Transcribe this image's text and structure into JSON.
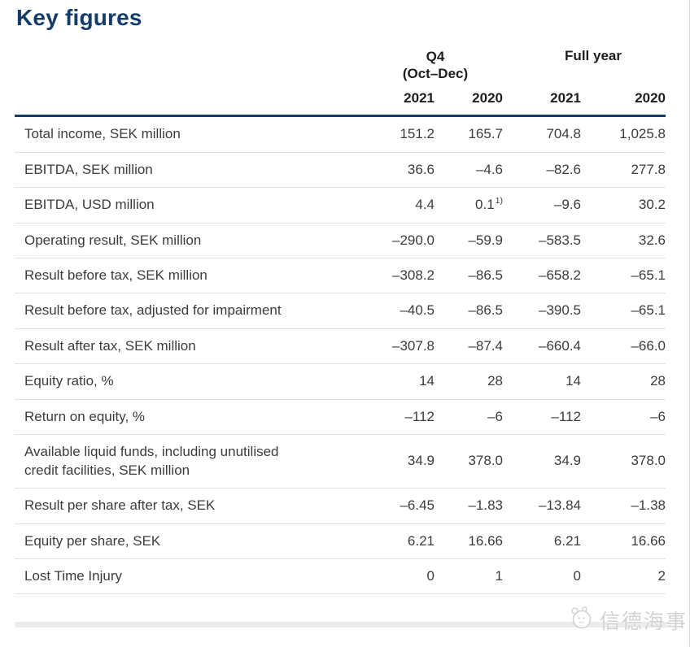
{
  "title": "Key figures",
  "colors": {
    "accent_navy": "#133c6b",
    "body_text": "#3c3c3c",
    "separator": "#e2e2e2",
    "watermark_gray": "#d2d2d2",
    "watermark_bar": "#ebebeb"
  },
  "table": {
    "group_headers": {
      "q4_line1": "Q4",
      "q4_line2": "(Oct–Dec)",
      "full_year": "Full year"
    },
    "years": [
      "2021",
      "2020",
      "2021",
      "2020"
    ],
    "rows": [
      {
        "label": "Total income, SEK million",
        "values": [
          "151.2",
          "165.7",
          "704.8",
          "1,025.8"
        ]
      },
      {
        "label": "EBITDA, SEK million",
        "values": [
          "36.6",
          "–4.6",
          "–82.6",
          "277.8"
        ]
      },
      {
        "label": "EBITDA, USD million",
        "values": [
          "4.4",
          "0.1",
          "–9.6",
          "30.2"
        ],
        "footnote_index": 1,
        "footnote_mark": "1)"
      },
      {
        "label": "Operating result, SEK million",
        "values": [
          "–290.0",
          "–59.9",
          "–583.5",
          "32.6"
        ]
      },
      {
        "label": "Result before tax, SEK million",
        "values": [
          "–308.2",
          "–86.5",
          "–658.2",
          "–65.1"
        ]
      },
      {
        "label": "Result before tax, adjusted for impairment",
        "values": [
          "–40.5",
          "–86.5",
          "–390.5",
          "–65.1"
        ]
      },
      {
        "label": "Result after tax, SEK million",
        "values": [
          "–307.8",
          "–87.4",
          "–660.4",
          "–66.0"
        ]
      },
      {
        "label": "Equity ratio, %",
        "values": [
          "14",
          "28",
          "14",
          "28"
        ]
      },
      {
        "label": "Return on equity, %",
        "values": [
          "–112",
          "–6",
          "–112",
          "–6"
        ]
      },
      {
        "label": "Available liquid funds, including unutilised credit facilities, SEK million",
        "values": [
          "34.9",
          "378.0",
          "34.9",
          "378.0"
        ]
      },
      {
        "label": "Result per share after tax, SEK",
        "values": [
          "–6.45",
          "–1.83",
          "–13.84",
          "–1.38"
        ]
      },
      {
        "label": "Equity per share, SEK",
        "values": [
          "6.21",
          "16.66",
          "6.21",
          "16.66"
        ]
      },
      {
        "label": "Lost Time Injury",
        "values": [
          "0",
          "1",
          "0",
          "2"
        ]
      }
    ]
  },
  "watermark": {
    "text": "信德海事",
    "logo": "panda-circle-logo"
  }
}
